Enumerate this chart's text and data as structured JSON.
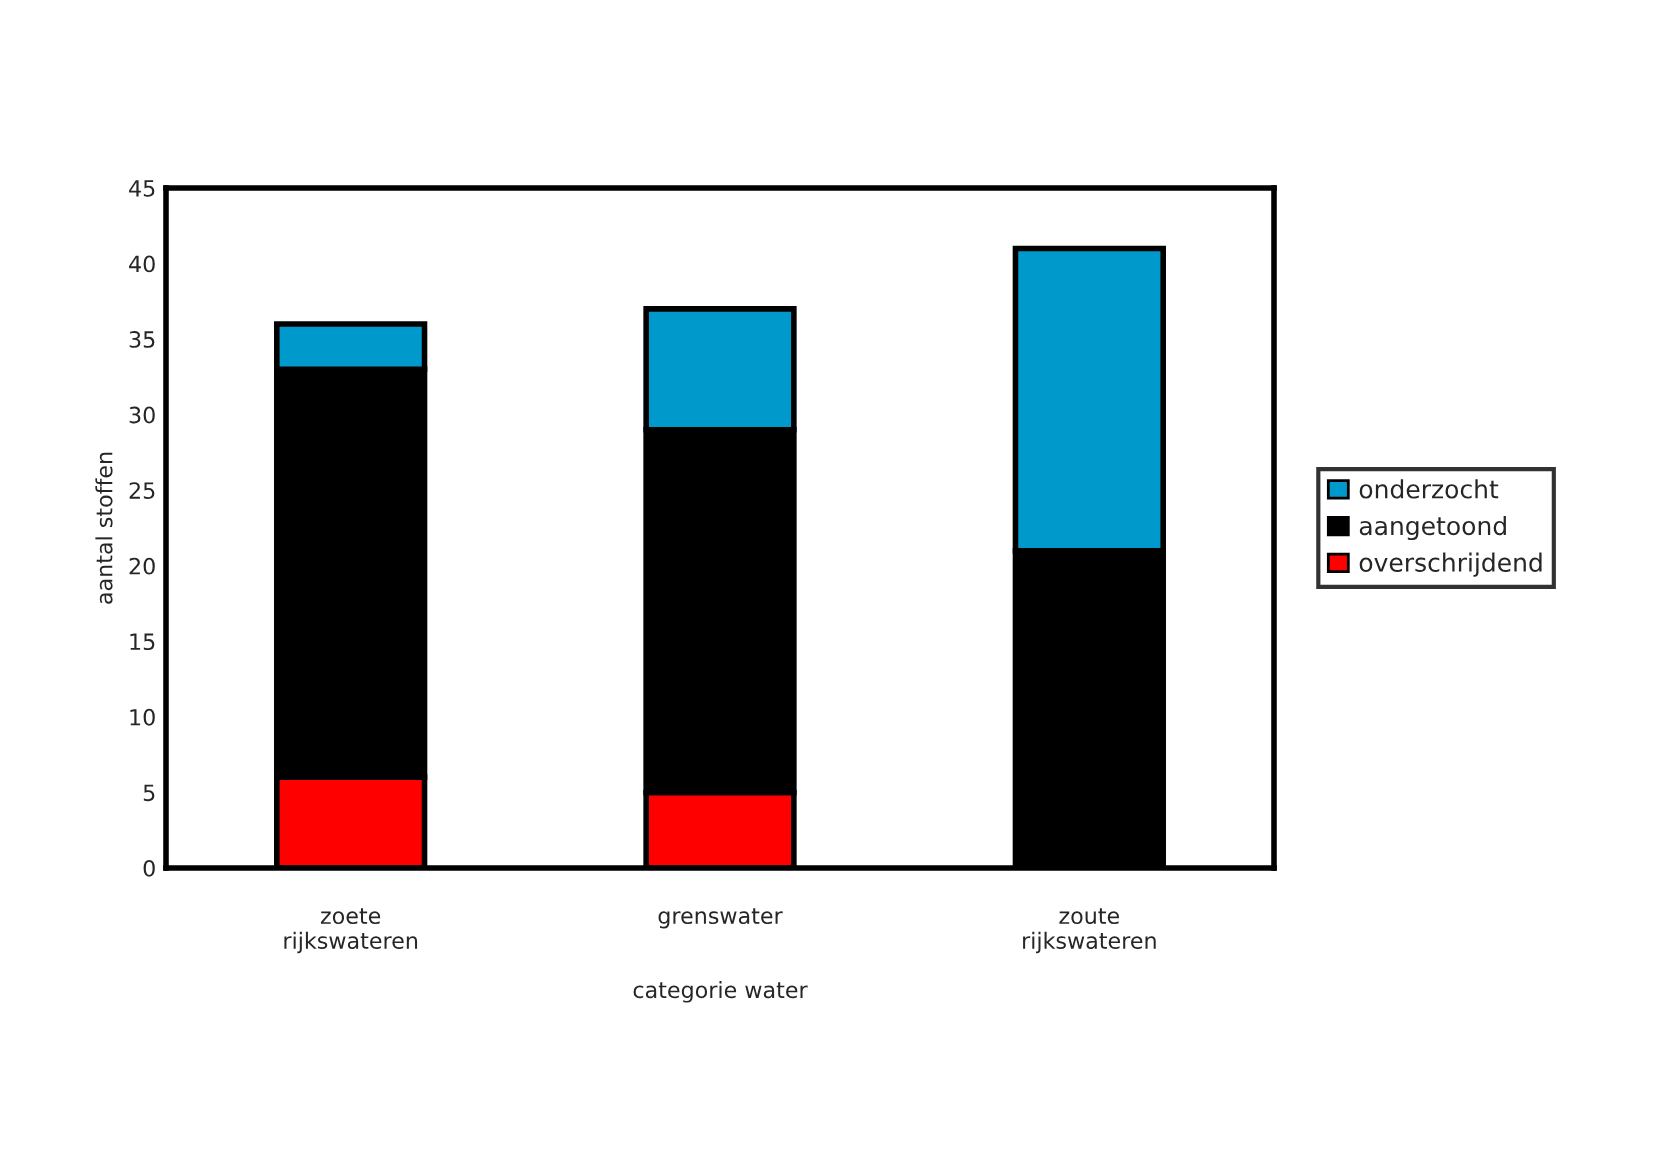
{
  "chart_data": {
    "type": "bar",
    "stacked": true,
    "xlabel": "categorie water",
    "ylabel": "aantal stoffen",
    "categories": [
      "zoete\nrijkswateren",
      "grenswater",
      "zoute\nrijkswateren"
    ],
    "series": [
      {
        "name": "overschrijdend",
        "color": "#ff0000",
        "values": [
          6,
          5,
          0
        ]
      },
      {
        "name": "aangetoond",
        "color": "#000000",
        "values": [
          27,
          24,
          21
        ]
      },
      {
        "name": "onderzocht",
        "color": "#0099cc",
        "values": [
          3,
          8,
          20
        ]
      }
    ],
    "ylim": [
      0,
      45
    ],
    "yticks": [
      0,
      5,
      10,
      15,
      20,
      25,
      30,
      35,
      40,
      45
    ],
    "grid": false,
    "legend": "right"
  }
}
